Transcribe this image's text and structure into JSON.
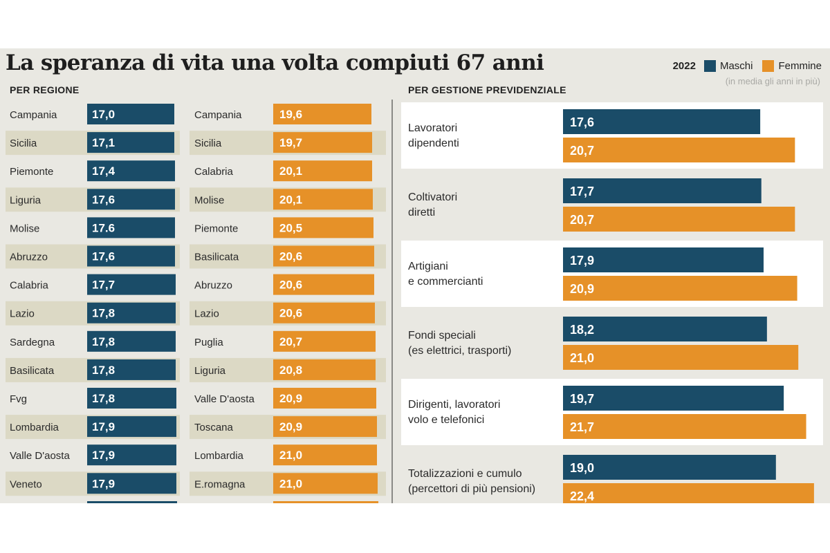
{
  "title": "La speranza di vita una volta compiuti 67 anni",
  "legend": {
    "year": "2022",
    "male": "Maschi",
    "female": "Femmine",
    "note": "(in media gli anni in più)"
  },
  "colors": {
    "male": "#1a4c68",
    "female": "#e69128",
    "stripe": "#dcd9c5",
    "panel": "#e9e8e2",
    "card": "#ffffff"
  },
  "chart_data": [
    {
      "type": "table",
      "title": "PER REGIONE",
      "series_name": "Maschi",
      "regions": [
        "Campania",
        "Sicilia",
        "Piemonte",
        "Liguria",
        "Molise",
        "Abruzzo",
        "Calabria",
        "Lazio",
        "Sardegna",
        "Basilicata",
        "Fvg",
        "Lombardia",
        "Valle D'aosta",
        "Veneto"
      ],
      "values": [
        "17,0",
        "17,1",
        "17,4",
        "17,6",
        "17.6",
        "17,6",
        "17,7",
        "17,8",
        "17,8",
        "17,8",
        "17,8",
        "17,9",
        "17,9",
        "17,9"
      ]
    },
    {
      "type": "table",
      "title": "PER REGIONE",
      "series_name": "Femmine",
      "regions": [
        "Campania",
        "Sicilia",
        "Calabria",
        "Molise",
        "Piemonte",
        "Basilicata",
        "Abruzzo",
        "Lazio",
        "Puglia",
        "Liguria",
        "Valle D'aosta",
        "Toscana",
        "Lombardia",
        "E.romagna"
      ],
      "values": [
        "19,6",
        "19,7",
        "20,1",
        "20,1",
        "20,5",
        "20,6",
        "20,6",
        "20,6",
        "20,7",
        "20,8",
        "20,9",
        "20,9",
        "21,0",
        "21,0"
      ]
    },
    {
      "type": "bar",
      "title": "PER GESTIONE PREVIDENZIALE",
      "categories": [
        [
          "Lavoratori",
          "dipendenti"
        ],
        [
          "Coltivatori",
          "diretti"
        ],
        [
          "Artigiani",
          "e commercianti"
        ],
        [
          "Fondi speciali",
          "(es elettrici, trasporti)"
        ],
        [
          "Dirigenti, lavoratori",
          "volo e telefonici"
        ],
        [
          "Totalizzazioni e cumulo",
          "(percettori di più pensioni)"
        ]
      ],
      "series": [
        {
          "name": "Maschi",
          "labels": [
            "17,6",
            "17,7",
            "17,9",
            "18,2",
            "19,7",
            "19,0"
          ],
          "values": [
            17.6,
            17.7,
            17.9,
            18.2,
            19.7,
            19.0
          ]
        },
        {
          "name": "Femmine",
          "labels": [
            "20,7",
            "20,7",
            "20,9",
            "21,0",
            "21,7",
            "22,4"
          ],
          "values": [
            20.7,
            20.7,
            20.9,
            21.0,
            21.7,
            22.4
          ]
        }
      ],
      "xlim": [
        0,
        23
      ]
    }
  ]
}
